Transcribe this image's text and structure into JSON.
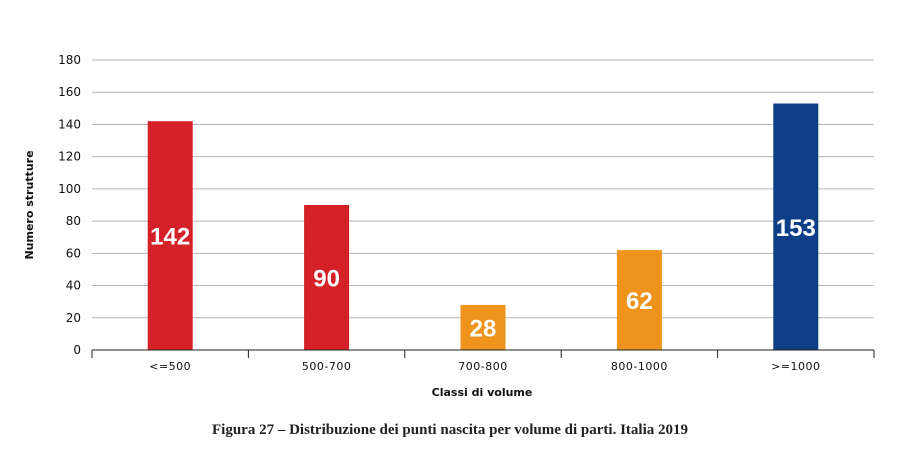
{
  "chart_data": {
    "type": "bar",
    "categories": [
      "<=500",
      "500-700",
      "700-800",
      "800-1000",
      ">=1000"
    ],
    "values": [
      142,
      90,
      28,
      62,
      153
    ],
    "data_labels": [
      "142",
      "90",
      "28",
      "62",
      "153"
    ],
    "bar_colors": [
      "#d42027",
      "#d42027",
      "#ee931c",
      "#ee931c",
      "#0e3f86"
    ],
    "xlabel": "Classi di volume",
    "ylabel": "Numero strutture",
    "ylim": [
      0,
      180
    ],
    "yticks": [
      0,
      20,
      40,
      60,
      80,
      100,
      120,
      140,
      160,
      180
    ],
    "grid": true,
    "legend": "none"
  },
  "caption": "Figura 27 – Distribuzione dei punti nascita per volume di parti. Italia 2019"
}
